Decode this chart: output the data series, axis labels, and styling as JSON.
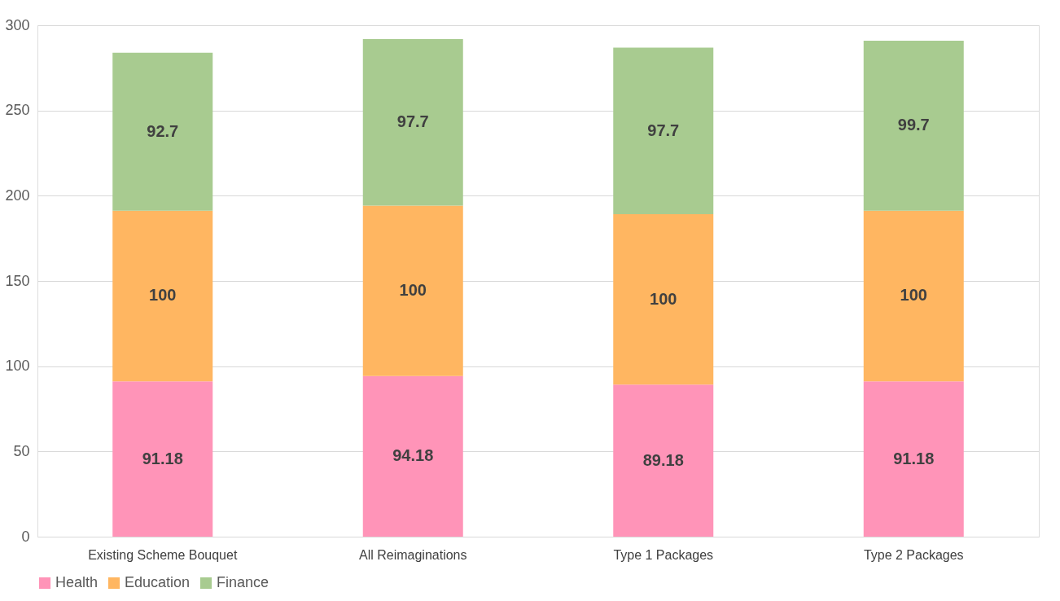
{
  "chart_data": {
    "type": "bar",
    "stacked": true,
    "categories": [
      "Existing Scheme Bouquet",
      "All Reimaginations",
      "Type 1 Packages",
      "Type 2 Packages"
    ],
    "series": [
      {
        "name": "Health",
        "color": "#ff94b8",
        "values": [
          91.18,
          94.18,
          89.18,
          91.18
        ]
      },
      {
        "name": "Education",
        "color": "#ffb661",
        "values": [
          100,
          100,
          100,
          100
        ]
      },
      {
        "name": "Finance",
        "color": "#a8cb90",
        "values": [
          92.7,
          97.7,
          97.7,
          99.7
        ]
      }
    ],
    "ylim": [
      0,
      300
    ],
    "yticks": [
      0,
      50,
      100,
      150,
      200,
      250,
      300
    ],
    "grid": "y",
    "legend": "bottom",
    "data_labels": true
  }
}
